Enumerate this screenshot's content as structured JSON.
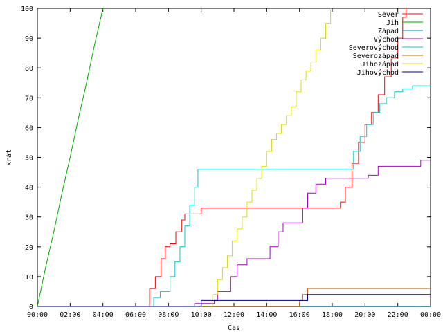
{
  "chart_data": {
    "type": "line",
    "title": "",
    "xlabel": "Čas",
    "ylabel": "krát",
    "xlim": [
      0,
      24
    ],
    "ylim": [
      0,
      100
    ],
    "x_unit": "hours",
    "x_tick_labels": [
      "00:00",
      "02:00",
      "04:00",
      "06:00",
      "08:00",
      "10:00",
      "12:00",
      "14:00",
      "16:00",
      "18:00",
      "20:00",
      "22:00",
      "00:00"
    ],
    "y_ticks": [
      0,
      10,
      20,
      30,
      40,
      50,
      60,
      70,
      80,
      90,
      100
    ],
    "legend_position": "top-right",
    "grid": false,
    "series": [
      {
        "name": "Sever",
        "color": "#ff0000",
        "x": [
          0,
          6.6,
          6.85,
          7.2,
          7.55,
          7.8,
          8.1,
          8.45,
          8.8,
          9,
          9.6,
          10,
          18,
          18.5,
          18.8,
          19.2,
          19.6,
          20,
          20.4,
          20.8,
          21.2,
          21.6,
          22,
          22.3,
          22.5
        ],
        "y": [
          0,
          0,
          6,
          10,
          16,
          20,
          21,
          25,
          29,
          31,
          31,
          33,
          33,
          35,
          40,
          48,
          55,
          61,
          65,
          71,
          77,
          83,
          90,
          97,
          100
        ]
      },
      {
        "name": "Jih",
        "color": "#00aa00",
        "x": [
          0,
          0.5,
          1,
          1.5,
          2,
          2.5,
          3,
          3.5,
          4
        ],
        "y": [
          0,
          13,
          25,
          38,
          50,
          63,
          75,
          88,
          100
        ]
      },
      {
        "name": "Západ",
        "color": "#0088bb",
        "x": [
          0,
          24
        ],
        "y": [
          0,
          0
        ]
      },
      {
        "name": "Východ",
        "color": "#aa00cc",
        "x": [
          0,
          9.2,
          9.6,
          10.2,
          10.8,
          11,
          11.8,
          12.2,
          12.8,
          13.6,
          14.2,
          14.7,
          15,
          15.6,
          16.2,
          16.5,
          17,
          17.6,
          18.4,
          19.5,
          20.2,
          20.8,
          21.5,
          22.5,
          23.4,
          24
        ],
        "y": [
          0,
          0,
          1,
          1,
          2,
          5,
          10,
          14,
          16,
          16,
          20,
          25,
          28,
          28,
          33,
          38,
          41,
          43,
          43,
          43,
          44,
          47,
          47,
          47,
          49,
          49
        ]
      },
      {
        "name": "Severovýchod",
        "color": "#00cccc",
        "x": [
          0,
          6.9,
          7.1,
          7.5,
          7.8,
          8.1,
          8.4,
          8.7,
          9,
          9.3,
          9.6,
          9.8,
          10,
          14,
          16,
          18,
          18.9,
          19.3,
          19.7,
          20.1,
          20.5,
          20.9,
          21.3,
          21.8,
          22.3,
          22.9,
          23.9,
          24
        ],
        "y": [
          0,
          0,
          3,
          5,
          5,
          10,
          15,
          20,
          27,
          34,
          40,
          46,
          46,
          46,
          46,
          46,
          46,
          52,
          57,
          61,
          65,
          68,
          70,
          72,
          73,
          74,
          74,
          74
        ]
      },
      {
        "name": "Severozápad",
        "color": "#cc6600",
        "x": [
          0,
          14.5,
          16,
          16.2,
          16.5,
          24
        ],
        "y": [
          0,
          0,
          2,
          4,
          6,
          6
        ]
      },
      {
        "name": "Jihozápad",
        "color": "#dddd00",
        "x": [
          0,
          10.4,
          10.7,
          11,
          11.3,
          11.6,
          11.9,
          12.2,
          12.5,
          12.8,
          13.1,
          13.4,
          13.7,
          14,
          14.3,
          14.6,
          14.9,
          15.2,
          15.5,
          15.8,
          16.1,
          16.4,
          16.7,
          17,
          17.3,
          17.6,
          17.9
        ],
        "y": [
          0,
          0,
          4,
          9,
          13,
          17,
          22,
          26,
          30,
          35,
          39,
          43,
          47,
          52,
          56,
          58,
          61,
          64,
          67,
          72,
          76,
          79,
          82,
          86,
          90,
          95,
          100
        ]
      },
      {
        "name": "Jihovýchod",
        "color": "#000088",
        "x": [
          0,
          9.4,
          10,
          16.3,
          16.5,
          24
        ],
        "y": [
          0,
          0,
          2,
          2,
          4,
          4
        ]
      }
    ]
  }
}
